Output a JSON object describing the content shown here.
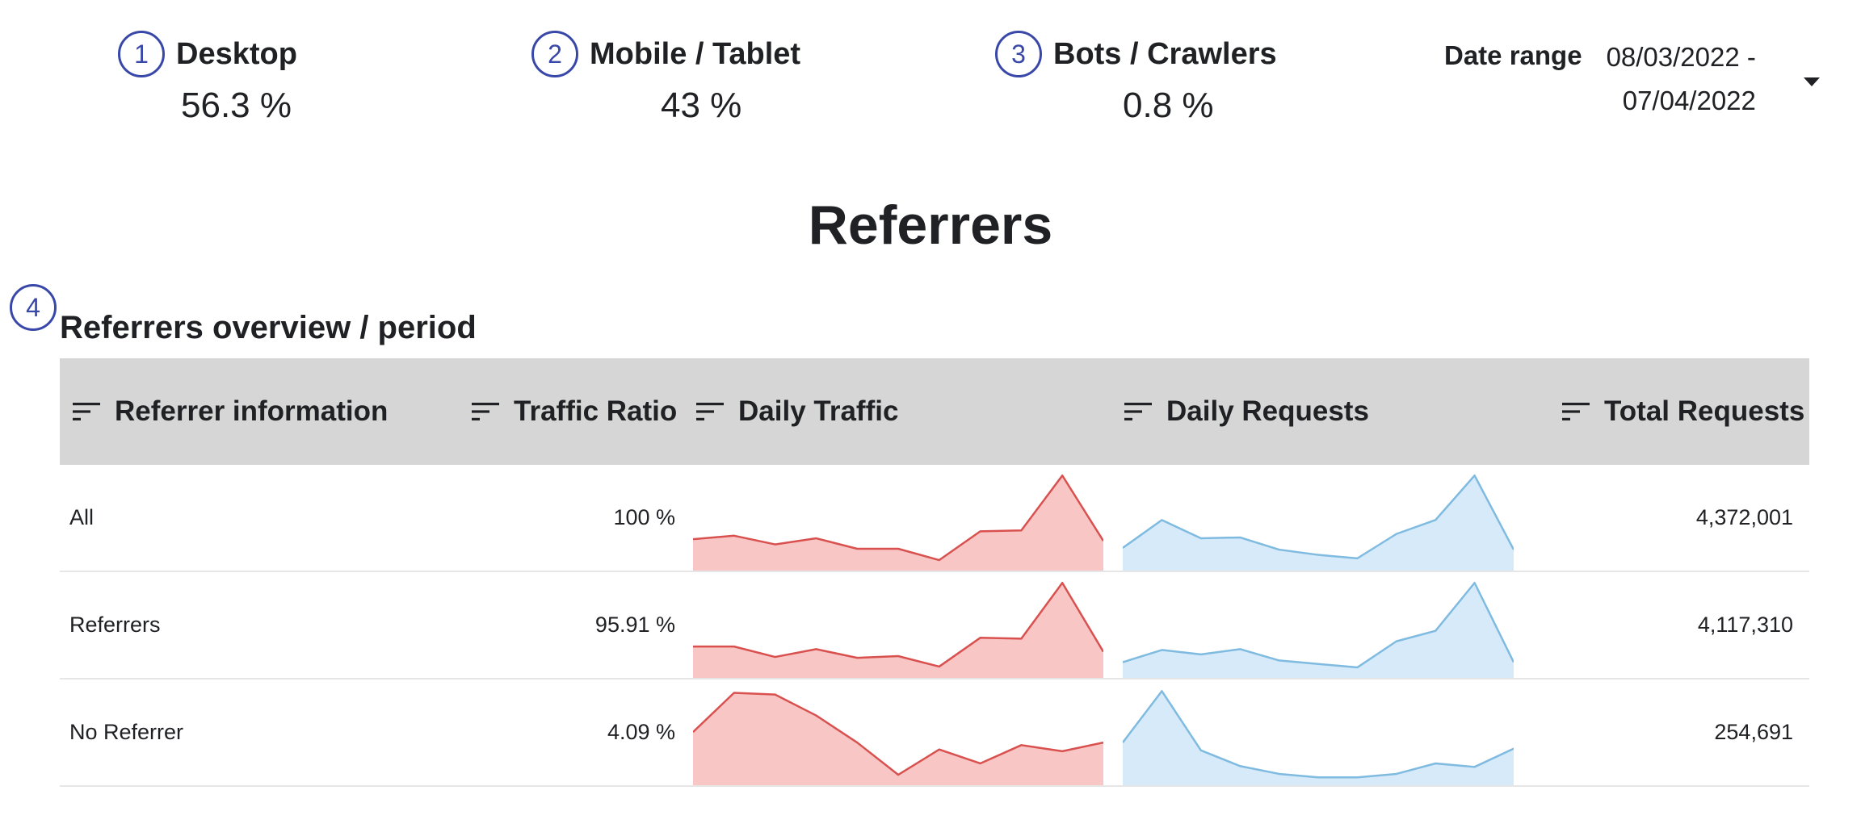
{
  "stats": [
    {
      "marker": "1",
      "label": "Desktop",
      "value": "56.3 %"
    },
    {
      "marker": "2",
      "label": "Mobile / Tablet",
      "value": "43 %"
    },
    {
      "marker": "3",
      "label": "Bots / Crawlers",
      "value": "0.8 %"
    }
  ],
  "date_range": {
    "label": "Date range",
    "start": "08/03/2022 -",
    "end": "07/04/2022"
  },
  "page_title": "Referrers",
  "section": {
    "marker": "4",
    "title": "Referrers overview / period"
  },
  "table": {
    "columns": [
      "Referrer information",
      "Traffic Ratio",
      "Daily Traffic",
      "Daily Requests",
      "Total Requests"
    ],
    "rows": [
      {
        "name": "All",
        "ratio": "100 %",
        "total": "4,372,001",
        "daily_traffic": [
          36,
          40,
          30,
          37,
          25,
          25,
          12,
          45,
          46,
          109,
          34
        ],
        "daily_requests": [
          26,
          58,
          37,
          38,
          24,
          18,
          14,
          42,
          58,
          109,
          24
        ]
      },
      {
        "name": "Referrers",
        "ratio": "95.91 %",
        "total": "4,117,310",
        "daily_traffic": [
          36,
          36,
          24,
          33,
          23,
          25,
          13,
          46,
          45,
          109,
          30
        ],
        "daily_requests": [
          18,
          32,
          27,
          33,
          20,
          16,
          12,
          42,
          54,
          109,
          18
        ]
      },
      {
        "name": "No Referrer",
        "ratio": "4.09 %",
        "total": "254,691",
        "daily_traffic": [
          61,
          106,
          104,
          80,
          49,
          12,
          41,
          25,
          46,
          39,
          49
        ],
        "daily_requests": [
          49,
          108,
          40,
          22,
          13,
          9,
          9,
          13,
          25,
          21,
          42
        ]
      }
    ]
  },
  "colors": {
    "marker": "#3948a8",
    "header_bg": "#d6d6d6",
    "traffic_line": "#d9514f",
    "traffic_fill": "#f9c6c6",
    "requests_line": "#7fbbe0",
    "requests_fill": "#d7eafa"
  }
}
